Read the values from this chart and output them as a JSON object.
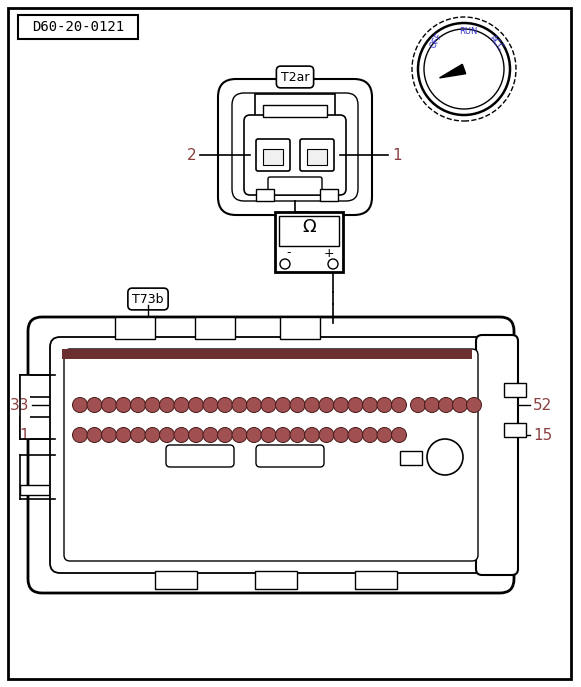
{
  "bg_color": "#ffffff",
  "line_color": "#000000",
  "title_label": "D60-20-0121",
  "connector_top_label": "T2ar",
  "connector_bot_label": "T73b",
  "label_color": "#8b4040",
  "dial_text_color": "#3333cc",
  "omega_symbol": "Ω",
  "pin_brown_edge": "#4a1a1a",
  "pin_brown_face": "#a05050",
  "pin_gray_face": "#c8c8c8"
}
